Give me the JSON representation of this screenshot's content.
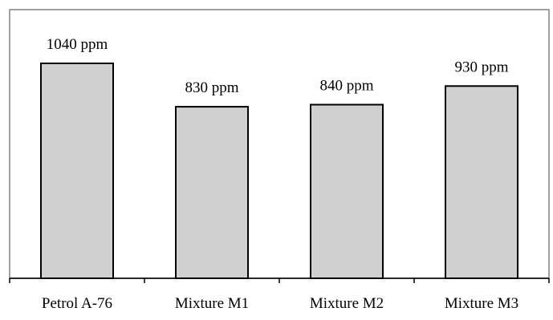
{
  "chart_data": {
    "type": "bar",
    "title": "",
    "xlabel": "",
    "ylabel": "",
    "categories": [
      "Petrol A-76",
      "Mixture M1",
      "Mixture M2",
      "Mixture M3"
    ],
    "values": [
      1040,
      830,
      840,
      930
    ],
    "data_labels": [
      "1040 ppm",
      "830 ppm",
      "840 ppm",
      "930 ppm"
    ],
    "unit": "ppm",
    "ylim": [
      0,
      1120
    ],
    "grid": false,
    "legend": "none",
    "colors": {
      "bar_fill": "#d0d0d0",
      "bar_stroke": "#000000",
      "frame": "#a0a0a0",
      "axis": "#000000"
    }
  }
}
